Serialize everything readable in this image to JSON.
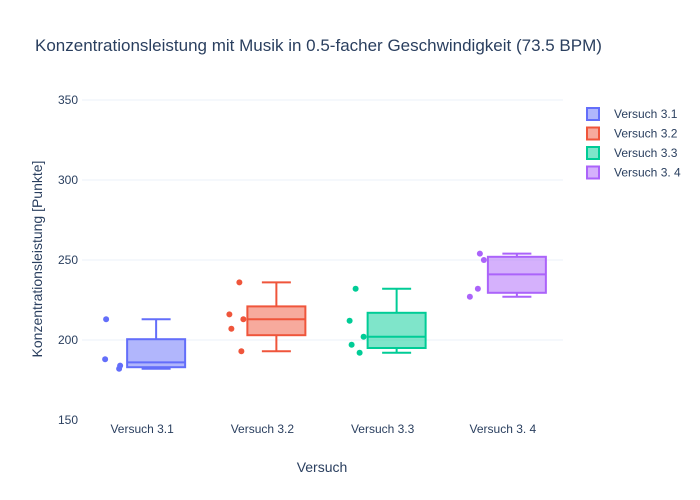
{
  "chart_data": {
    "type": "box",
    "title": "Konzentrationsleistung mit Musik in 0.5-facher Geschwindigkeit (73.5 BPM)",
    "xlabel": "Versuch",
    "ylabel": "Konzentrationsleistung [Punkte]",
    "ylim": [
      150,
      350
    ],
    "yticks": [
      150,
      200,
      250,
      300,
      350
    ],
    "grid": true,
    "legend_position": "top-right",
    "categories": [
      "Versuch 3.1",
      "Versuch 3.2",
      "Versuch 3.3",
      "Versuch 3. 4"
    ],
    "series": [
      {
        "name": "Versuch 3.1",
        "color": "#636efa",
        "points": [
          213,
          184,
          188,
          182
        ],
        "box": {
          "min": 182,
          "q1": 183,
          "median": 186,
          "q3": 200.5,
          "max": 213
        }
      },
      {
        "name": "Versuch 3.2",
        "color": "#ef553b",
        "points": [
          236,
          216,
          213,
          207,
          193
        ],
        "box": {
          "min": 193,
          "q1": 203,
          "median": 213,
          "q3": 221,
          "max": 236
        }
      },
      {
        "name": "Versuch 3.3",
        "color": "#00cc96",
        "points": [
          232,
          212,
          202,
          197,
          192
        ],
        "box": {
          "min": 192,
          "q1": 195,
          "median": 202,
          "q3": 217,
          "max": 232
        }
      },
      {
        "name": "Versuch 3. 4",
        "color": "#ab63fa",
        "points": [
          254,
          250,
          232,
          227
        ],
        "box": {
          "min": 227,
          "q1": 229.5,
          "median": 241,
          "q3": 252,
          "max": 254
        }
      }
    ]
  }
}
